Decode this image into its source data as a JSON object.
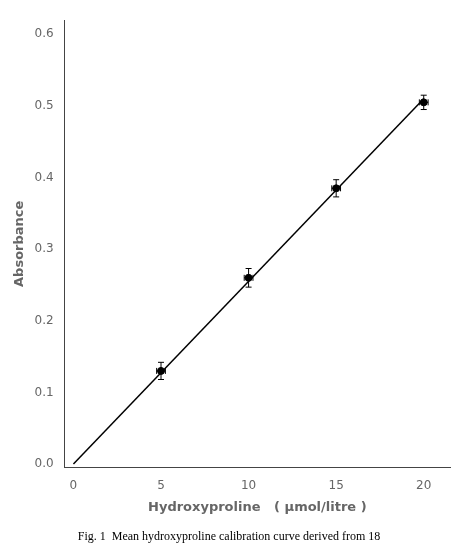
{
  "chart_data": {
    "type": "scatter",
    "xlabel": "Hydroxyproline   ( μmol/litre )",
    "ylabel": "Absorbance",
    "caption": "Fig. 1  Mean hydroxyproline calibration curve derived from 18",
    "xlim": [
      -0.5,
      21.5
    ],
    "ylim": [
      -0.005,
      0.62
    ],
    "xticks": [
      0,
      5,
      10,
      15,
      20
    ],
    "yticks": [
      {
        "value": 0,
        "label": "0.0"
      },
      0.1,
      0.2,
      0.3,
      0.4,
      0.5,
      0.6
    ],
    "grid": false,
    "series": [
      {
        "type": "scatter",
        "x": [
          5,
          10,
          15,
          20
        ],
        "values": [
          0.13,
          0.26,
          0.385,
          0.505
        ],
        "yerr": [
          0.012,
          0.013,
          0.012,
          0.01
        ],
        "xerr": [
          0.25,
          0.25,
          0.25,
          0.25
        ],
        "color": "black",
        "marker": "circle"
      },
      {
        "type": "line",
        "x": [
          0,
          20
        ],
        "values": [
          0,
          0.51
        ],
        "color": "black",
        "line_style": "solid"
      }
    ]
  }
}
